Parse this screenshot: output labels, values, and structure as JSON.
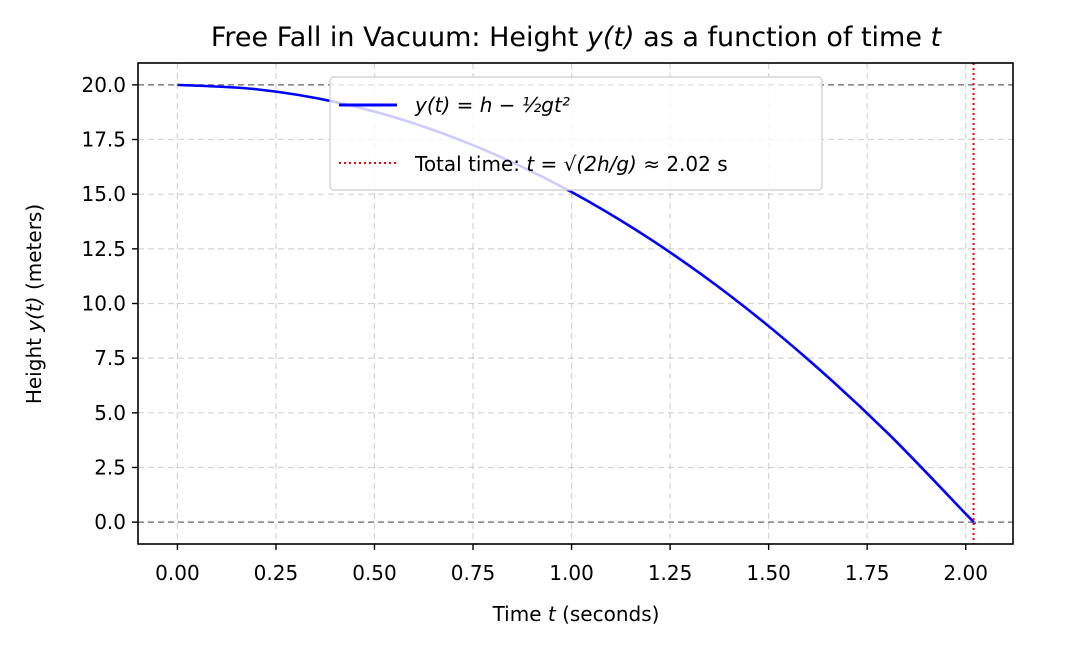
{
  "chart_data": {
    "type": "line",
    "title_text": "Free Fall in Vacuum: Height ",
    "title_var": "y(t)",
    "title_mid": " as a function of time ",
    "title_var2": "t",
    "xlabel_prefix": "Time ",
    "xlabel_var": "t",
    "xlabel_suffix": " (seconds)",
    "ylabel_prefix": "Height ",
    "ylabel_var": "y(t)",
    "ylabel_suffix": " (meters)",
    "xlim": [
      -0.1,
      2.12
    ],
    "ylim": [
      -1.0,
      21.0
    ],
    "xticks": [
      0.0,
      0.25,
      0.5,
      0.75,
      1.0,
      1.25,
      1.5,
      1.75,
      2.0
    ],
    "xtick_labels": [
      "0.00",
      "0.25",
      "0.50",
      "0.75",
      "1.00",
      "1.25",
      "1.50",
      "1.75",
      "2.00"
    ],
    "yticks": [
      0.0,
      2.5,
      5.0,
      7.5,
      10.0,
      12.5,
      15.0,
      17.5,
      20.0
    ],
    "ytick_labels": [
      "0.0",
      "2.5",
      "5.0",
      "7.5",
      "10.0",
      "12.5",
      "15.0",
      "17.5",
      "20.0"
    ],
    "grid": true,
    "legend_location": "upper center",
    "series": [
      {
        "kind": "curve",
        "color": "#0000ff",
        "x": [
          0.0,
          0.2,
          0.4,
          0.6,
          0.8,
          1.0,
          1.2,
          1.4,
          1.6,
          1.8,
          2.0,
          2.02
        ],
        "y": [
          20.0,
          19.8,
          19.22,
          18.24,
          16.86,
          15.1,
          12.94,
          10.39,
          7.44,
          4.11,
          0.38,
          0.0
        ]
      },
      {
        "kind": "vertical-line",
        "color": "#ff0000",
        "x": 2.02
      }
    ],
    "reference_lines": [
      {
        "y": 20.0,
        "color": "#808080"
      },
      {
        "y": 0.0,
        "color": "#808080"
      }
    ],
    "legend": {
      "curve_label": "y(t) = h − ½gt²",
      "vline_label_prefix": "Total time: ",
      "vline_label_formula": "t = √(2h/g)",
      "vline_label_suffix": " ≈ 2.02 s"
    }
  }
}
